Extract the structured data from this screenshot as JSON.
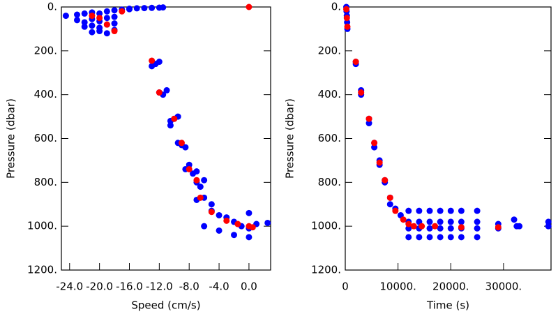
{
  "chart_data": [
    {
      "type": "scatter",
      "xlabel": "Speed (cm/s)",
      "ylabel": "Pressure (dbar)",
      "xlim": [
        -25.1,
        2.9
      ],
      "ylim": [
        0,
        1200
      ],
      "y_inverted": true,
      "xticks": [
        {
          "value": -24,
          "label": "-24.0"
        },
        {
          "value": -20,
          "label": "-20.0"
        },
        {
          "value": -16,
          "label": "-16.0"
        },
        {
          "value": -12,
          "label": "-12.0"
        },
        {
          "value": -8,
          "label": "-8.0"
        },
        {
          "value": -4,
          "label": "-4.0"
        },
        {
          "value": 0,
          "label": "0.0"
        }
      ],
      "yticks": [
        {
          "value": 0,
          "label": "0."
        },
        {
          "value": 200,
          "label": "200."
        },
        {
          "value": 400,
          "label": "400."
        },
        {
          "value": 600,
          "label": "600."
        },
        {
          "value": 800,
          "label": "800."
        },
        {
          "value": 1000,
          "label": "1000."
        },
        {
          "value": 1200,
          "label": "1200."
        }
      ],
      "series": [
        {
          "color": "#0000ff",
          "x": [
            -24.5,
            -23,
            -22,
            -21,
            -20,
            -19,
            -18,
            -17,
            -16,
            -23,
            -22,
            -21,
            -20,
            -19,
            -18,
            -22,
            -21,
            -20,
            -19,
            -18,
            -21,
            -20,
            -19,
            -18,
            -16,
            -15,
            -14,
            -13,
            -12,
            -11.5,
            -13,
            -12.5,
            -12,
            -12,
            -11.5,
            -11,
            -10.5,
            -10,
            -9.5,
            -10.5,
            -9.5,
            -9,
            -8.5,
            -8.5,
            -8,
            -7.5,
            -7,
            -7,
            -6.5,
            -6,
            -7,
            -6,
            -5,
            -5,
            -4,
            -3,
            -2,
            -1,
            0,
            1,
            -4,
            -2,
            0,
            0,
            2.5,
            -6
          ],
          "y": [
            40,
            35,
            30,
            25,
            30,
            20,
            15,
            12,
            10,
            60,
            70,
            55,
            65,
            50,
            45,
            90,
            85,
            95,
            80,
            75,
            115,
            110,
            120,
            105,
            8,
            6,
            5,
            4,
            3,
            2,
            270,
            260,
            250,
            390,
            400,
            380,
            520,
            510,
            500,
            540,
            620,
            630,
            640,
            740,
            720,
            760,
            750,
            800,
            820,
            790,
            880,
            870,
            900,
            930,
            950,
            960,
            980,
            1000,
            1010,
            990,
            1020,
            1040,
            1050,
            940,
            985,
            1000
          ]
        },
        {
          "color": "#ff0000",
          "x": [
            -20,
            -19,
            -18,
            -17,
            -21,
            -13,
            -12,
            -10,
            -9,
            -8,
            -7,
            -6.5,
            -5,
            -3,
            -1.5,
            0,
            0.5,
            0
          ],
          "y": [
            50,
            80,
            110,
            20,
            40,
            245,
            390,
            510,
            620,
            740,
            790,
            870,
            935,
            975,
            990,
            1000,
            1005,
            0
          ]
        }
      ]
    },
    {
      "type": "scatter",
      "xlabel": "Time (s)",
      "ylabel": "Pressure (dbar)",
      "xlim": [
        0,
        39000
      ],
      "ylim": [
        0,
        1200
      ],
      "y_inverted": true,
      "xticks": [
        0,
        {
          "value": 10000,
          "label": "10000."
        },
        {
          "value": 20000,
          "label": "20000."
        },
        {
          "value": 30000,
          "label": "30000."
        }
      ],
      "yticks": [
        {
          "value": 0,
          "label": "0."
        },
        {
          "value": 200,
          "label": "200."
        },
        {
          "value": 400,
          "label": "400."
        },
        {
          "value": 600,
          "label": "600."
        },
        {
          "value": 800,
          "label": "800."
        },
        {
          "value": 1000,
          "label": "1000."
        },
        {
          "value": 1200,
          "label": "1200."
        }
      ],
      "series": [
        {
          "color": "#0000ff",
          "x": [
            200,
            250,
            300,
            350,
            400,
            2000,
            2000,
            3000,
            3000,
            4500,
            4500,
            5500,
            5500,
            6500,
            6500,
            7500,
            7500,
            8500,
            8500,
            9500,
            10500,
            12000,
            14000,
            16000,
            18000,
            20000,
            22000,
            25000,
            12000,
            14000,
            16000,
            18000,
            20000,
            22000,
            25000,
            12000,
            14000,
            16000,
            18000,
            20000,
            22000,
            25000,
            12000,
            14000,
            16000,
            18000,
            20000,
            22000,
            25000,
            29000,
            29000,
            32000,
            32500,
            33000,
            38500,
            38500
          ],
          "y": [
            0,
            20,
            40,
            70,
            100,
            260,
            250,
            380,
            400,
            510,
            530,
            620,
            640,
            700,
            720,
            790,
            800,
            870,
            900,
            920,
            950,
            930,
            930,
            930,
            930,
            930,
            930,
            930,
            980,
            980,
            980,
            980,
            980,
            980,
            980,
            1010,
            1010,
            1010,
            1010,
            1010,
            1010,
            1010,
            1050,
            1050,
            1050,
            1050,
            1050,
            1050,
            1050,
            990,
            1010,
            970,
            1000,
            1000,
            980,
            1000
          ]
        },
        {
          "color": "#ff0000",
          "x": [
            200,
            300,
            400,
            2000,
            3000,
            4500,
            5500,
            6500,
            7500,
            8500,
            9500,
            11000,
            12000,
            13000,
            14500,
            17000,
            22000,
            29000
          ],
          "y": [
            10,
            50,
            90,
            250,
            390,
            510,
            620,
            710,
            790,
            870,
            930,
            970,
            990,
            1000,
            1000,
            1000,
            1005,
            1005
          ]
        }
      ]
    }
  ]
}
